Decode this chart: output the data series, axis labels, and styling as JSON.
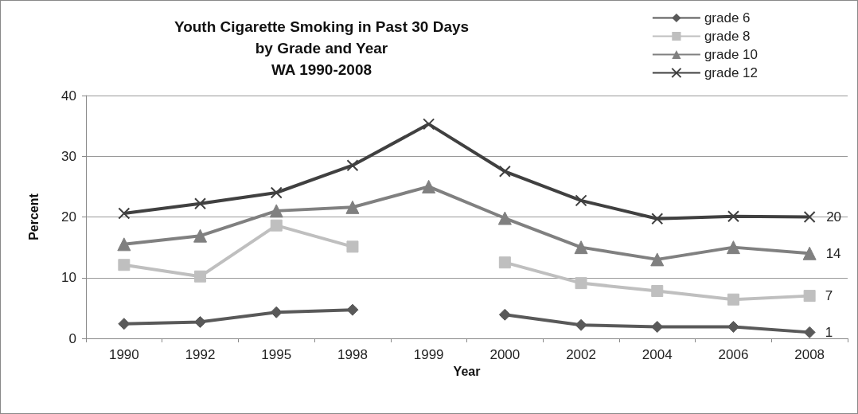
{
  "chart_data": {
    "type": "line",
    "title": "Youth Cigarette Smoking in Past 30 Days\nby Grade and Year\nWA 1990-2008",
    "xlabel": "Year",
    "ylabel": "Percent",
    "categories": [
      "1990",
      "1992",
      "1995",
      "1998",
      "1999",
      "2000",
      "2002",
      "2004",
      "2006",
      "2008"
    ],
    "series": [
      {
        "name": "grade 6",
        "color": "#595959",
        "marker": "diamond",
        "values": [
          2.4,
          2.7,
          4.3,
          4.7,
          null,
          3.9,
          2.2,
          1.9,
          1.9,
          1
        ],
        "value_labels": [
          null,
          null,
          null,
          null,
          null,
          null,
          null,
          null,
          null,
          "1"
        ]
      },
      {
        "name": "grade 8",
        "color": "#bfbfbf",
        "marker": "square",
        "values": [
          12.1,
          10.2,
          18.6,
          15.1,
          null,
          12.5,
          9.1,
          7.8,
          6.4,
          7
        ],
        "value_labels": [
          null,
          null,
          null,
          null,
          null,
          null,
          null,
          null,
          null,
          "7"
        ]
      },
      {
        "name": "grade 10",
        "color": "#808080",
        "marker": "triangle",
        "values": [
          15.5,
          16.9,
          21,
          21.6,
          25,
          19.8,
          15,
          13,
          15,
          14
        ],
        "value_labels": [
          null,
          null,
          null,
          null,
          null,
          null,
          null,
          null,
          null,
          "14"
        ]
      },
      {
        "name": "grade 12",
        "color": "#404040",
        "marker": "cross",
        "values": [
          20.6,
          22.2,
          24,
          28.5,
          35.3,
          27.5,
          22.7,
          19.7,
          20.1,
          20
        ],
        "value_labels": [
          null,
          null,
          null,
          null,
          null,
          null,
          null,
          null,
          null,
          "20"
        ]
      }
    ],
    "ylim": [
      0,
      40
    ],
    "yticks": [
      0,
      10,
      20,
      30,
      40
    ],
    "grid": "y",
    "legend": "top right"
  }
}
